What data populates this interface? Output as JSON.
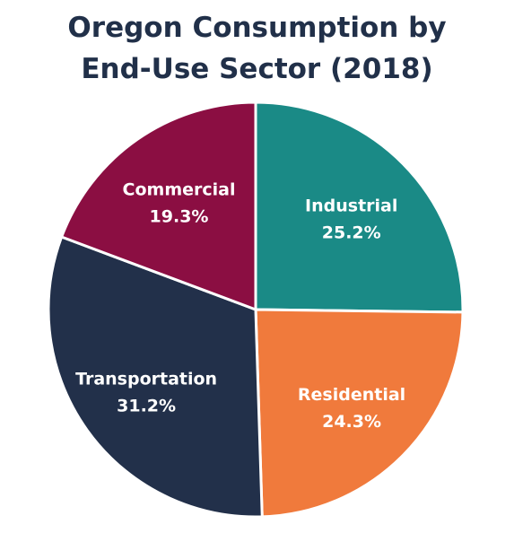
{
  "chart_data": {
    "type": "pie",
    "title_lines": [
      "Oregon Consumption by",
      "End-Use Sector (2018)"
    ],
    "slices": [
      {
        "label": "Industrial",
        "value": 25.2,
        "value_label": "25.2%",
        "color": "#1a8a86"
      },
      {
        "label": "Residential",
        "value": 24.3,
        "value_label": "24.3%",
        "color": "#f07a3c"
      },
      {
        "label": "Transportation",
        "value": 31.2,
        "value_label": "31.2%",
        "color": "#22304a"
      },
      {
        "label": "Commercial",
        "value": 19.3,
        "value_label": "19.3%",
        "color": "#8b0e42"
      }
    ],
    "start_angle": "12 o'clock",
    "direction": "clockwise",
    "legend": "none"
  }
}
